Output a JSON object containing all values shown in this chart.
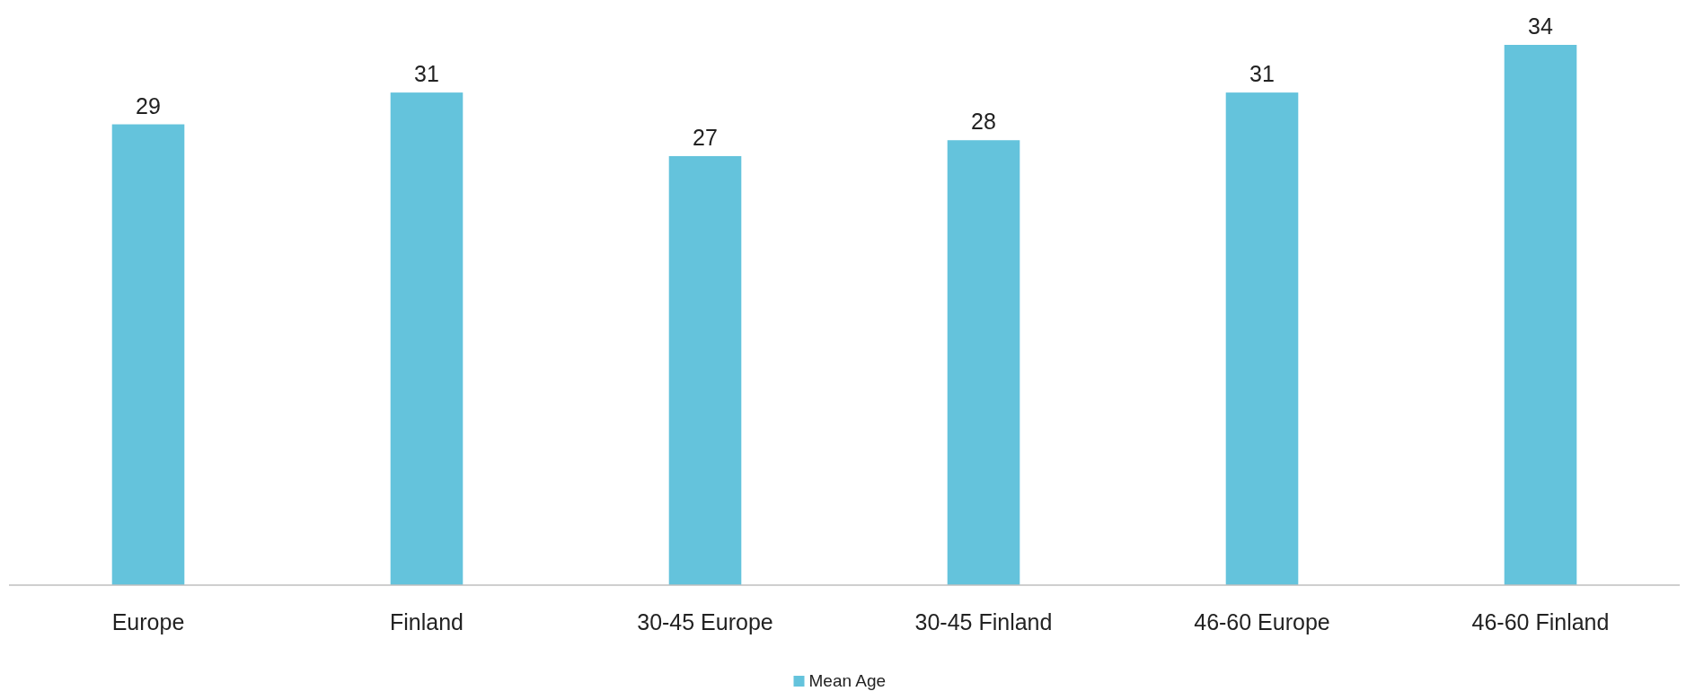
{
  "chart_data": {
    "type": "bar",
    "categories": [
      "Europe",
      "Finland",
      "30-45 Europe",
      "30-45 Finland",
      "46-60 Europe",
      "46-60 Finland"
    ],
    "series": [
      {
        "name": "Mean Age",
        "color": "#64c3dc",
        "values": [
          29,
          31,
          27,
          28,
          31,
          34
        ]
      }
    ],
    "data_labels": true,
    "legend": "bottom"
  }
}
